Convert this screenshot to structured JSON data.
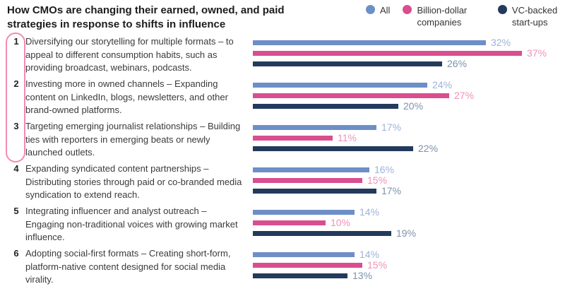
{
  "title": "How CMOs are changing their earned, owned, and paid strategies in response to shifts in influence",
  "legend": [
    {
      "label": "All",
      "color": "#6d8fc8"
    },
    {
      "label": "Billion-dollar companies",
      "color": "#d94e8f"
    },
    {
      "label": "VC-backed start-ups",
      "color": "#233a5c"
    }
  ],
  "chart_data": {
    "type": "bar",
    "orientation": "horizontal",
    "unit": "%",
    "xlim": [
      0,
      40
    ],
    "legend_position": "top-right",
    "grid": false,
    "highlight_bracket": {
      "applies_to_items": [
        "1",
        "2",
        "3"
      ],
      "color": "#f08cb4"
    },
    "categories": [
      {
        "number": "1",
        "text": "Diversifying our storytelling for multiple formats – to appeal to different consumption habits, such as providing broadcast, webinars, podcasts."
      },
      {
        "number": "2",
        "text": "Investing more in owned channels – Expanding content on LinkedIn, blogs, newsletters, and other brand-owned platforms."
      },
      {
        "number": "3",
        "text": "Targeting emerging journalist relationships – Building ties with reporters in emerging beats or newly launched outlets."
      },
      {
        "number": "4",
        "text": "Expanding syndicated content partnerships – Distributing stories through paid or co-branded media syndication to extend reach."
      },
      {
        "number": "5",
        "text": "Integrating influencer and analyst outreach – Engaging non-traditional voices with growing market influence."
      },
      {
        "number": "6",
        "text": "Adopting social-first formats – Creating short-form, platform-native content designed for social media virality."
      }
    ],
    "series": [
      {
        "name": "All",
        "color": "#6d8fc8",
        "label_color": "#9fb2da",
        "values": [
          32,
          24,
          17,
          16,
          14,
          14
        ]
      },
      {
        "name": "Billion-dollar companies",
        "color": "#d94e8f",
        "label_color": "#ef92b8",
        "values": [
          37,
          27,
          11,
          15,
          10,
          15
        ]
      },
      {
        "name": "VC-backed start-ups",
        "color": "#233a5c",
        "label_color": "#7e92ae",
        "values": [
          26,
          20,
          22,
          17,
          19,
          13
        ]
      }
    ]
  }
}
